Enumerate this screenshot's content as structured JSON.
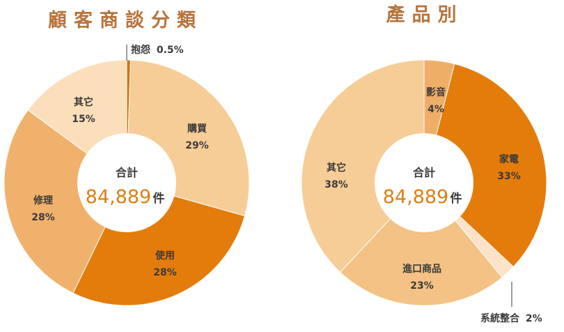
{
  "chart_data": [
    {
      "type": "donut",
      "title": "顧客商談分類",
      "center": {
        "label": "合計",
        "value": "84,889",
        "unit": "件"
      },
      "slices": [
        {
          "name": "抱怨",
          "value": 0.5,
          "label": "0.5%",
          "color": "#d9720e"
        },
        {
          "name": "購買",
          "value": 29,
          "label": "29%",
          "color": "#f6cd97"
        },
        {
          "name": "使用",
          "value": 28,
          "label": "28%",
          "color": "#e47c0c"
        },
        {
          "name": "修理",
          "value": 28,
          "label": "28%",
          "color": "#f0b16c"
        },
        {
          "name": "其它",
          "value": 15,
          "label": "15%",
          "color": "#fbdfbb"
        }
      ]
    },
    {
      "type": "donut",
      "title": "產品別",
      "center": {
        "label": "合計",
        "value": "84,889",
        "unit": "件"
      },
      "slices": [
        {
          "name": "影音",
          "value": 4,
          "label": "4%",
          "color": "#efae68"
        },
        {
          "name": "家電",
          "value": 33,
          "label": "33%",
          "color": "#e47c0c"
        },
        {
          "name": "系統整合",
          "value": 2,
          "label": "2%",
          "color": "#fbe2c8"
        },
        {
          "name": "進口商品",
          "value": 23,
          "label": "23%",
          "color": "#f3c284"
        },
        {
          "name": "其它",
          "value": 38,
          "label": "38%",
          "color": "#f6cd97"
        }
      ]
    }
  ]
}
